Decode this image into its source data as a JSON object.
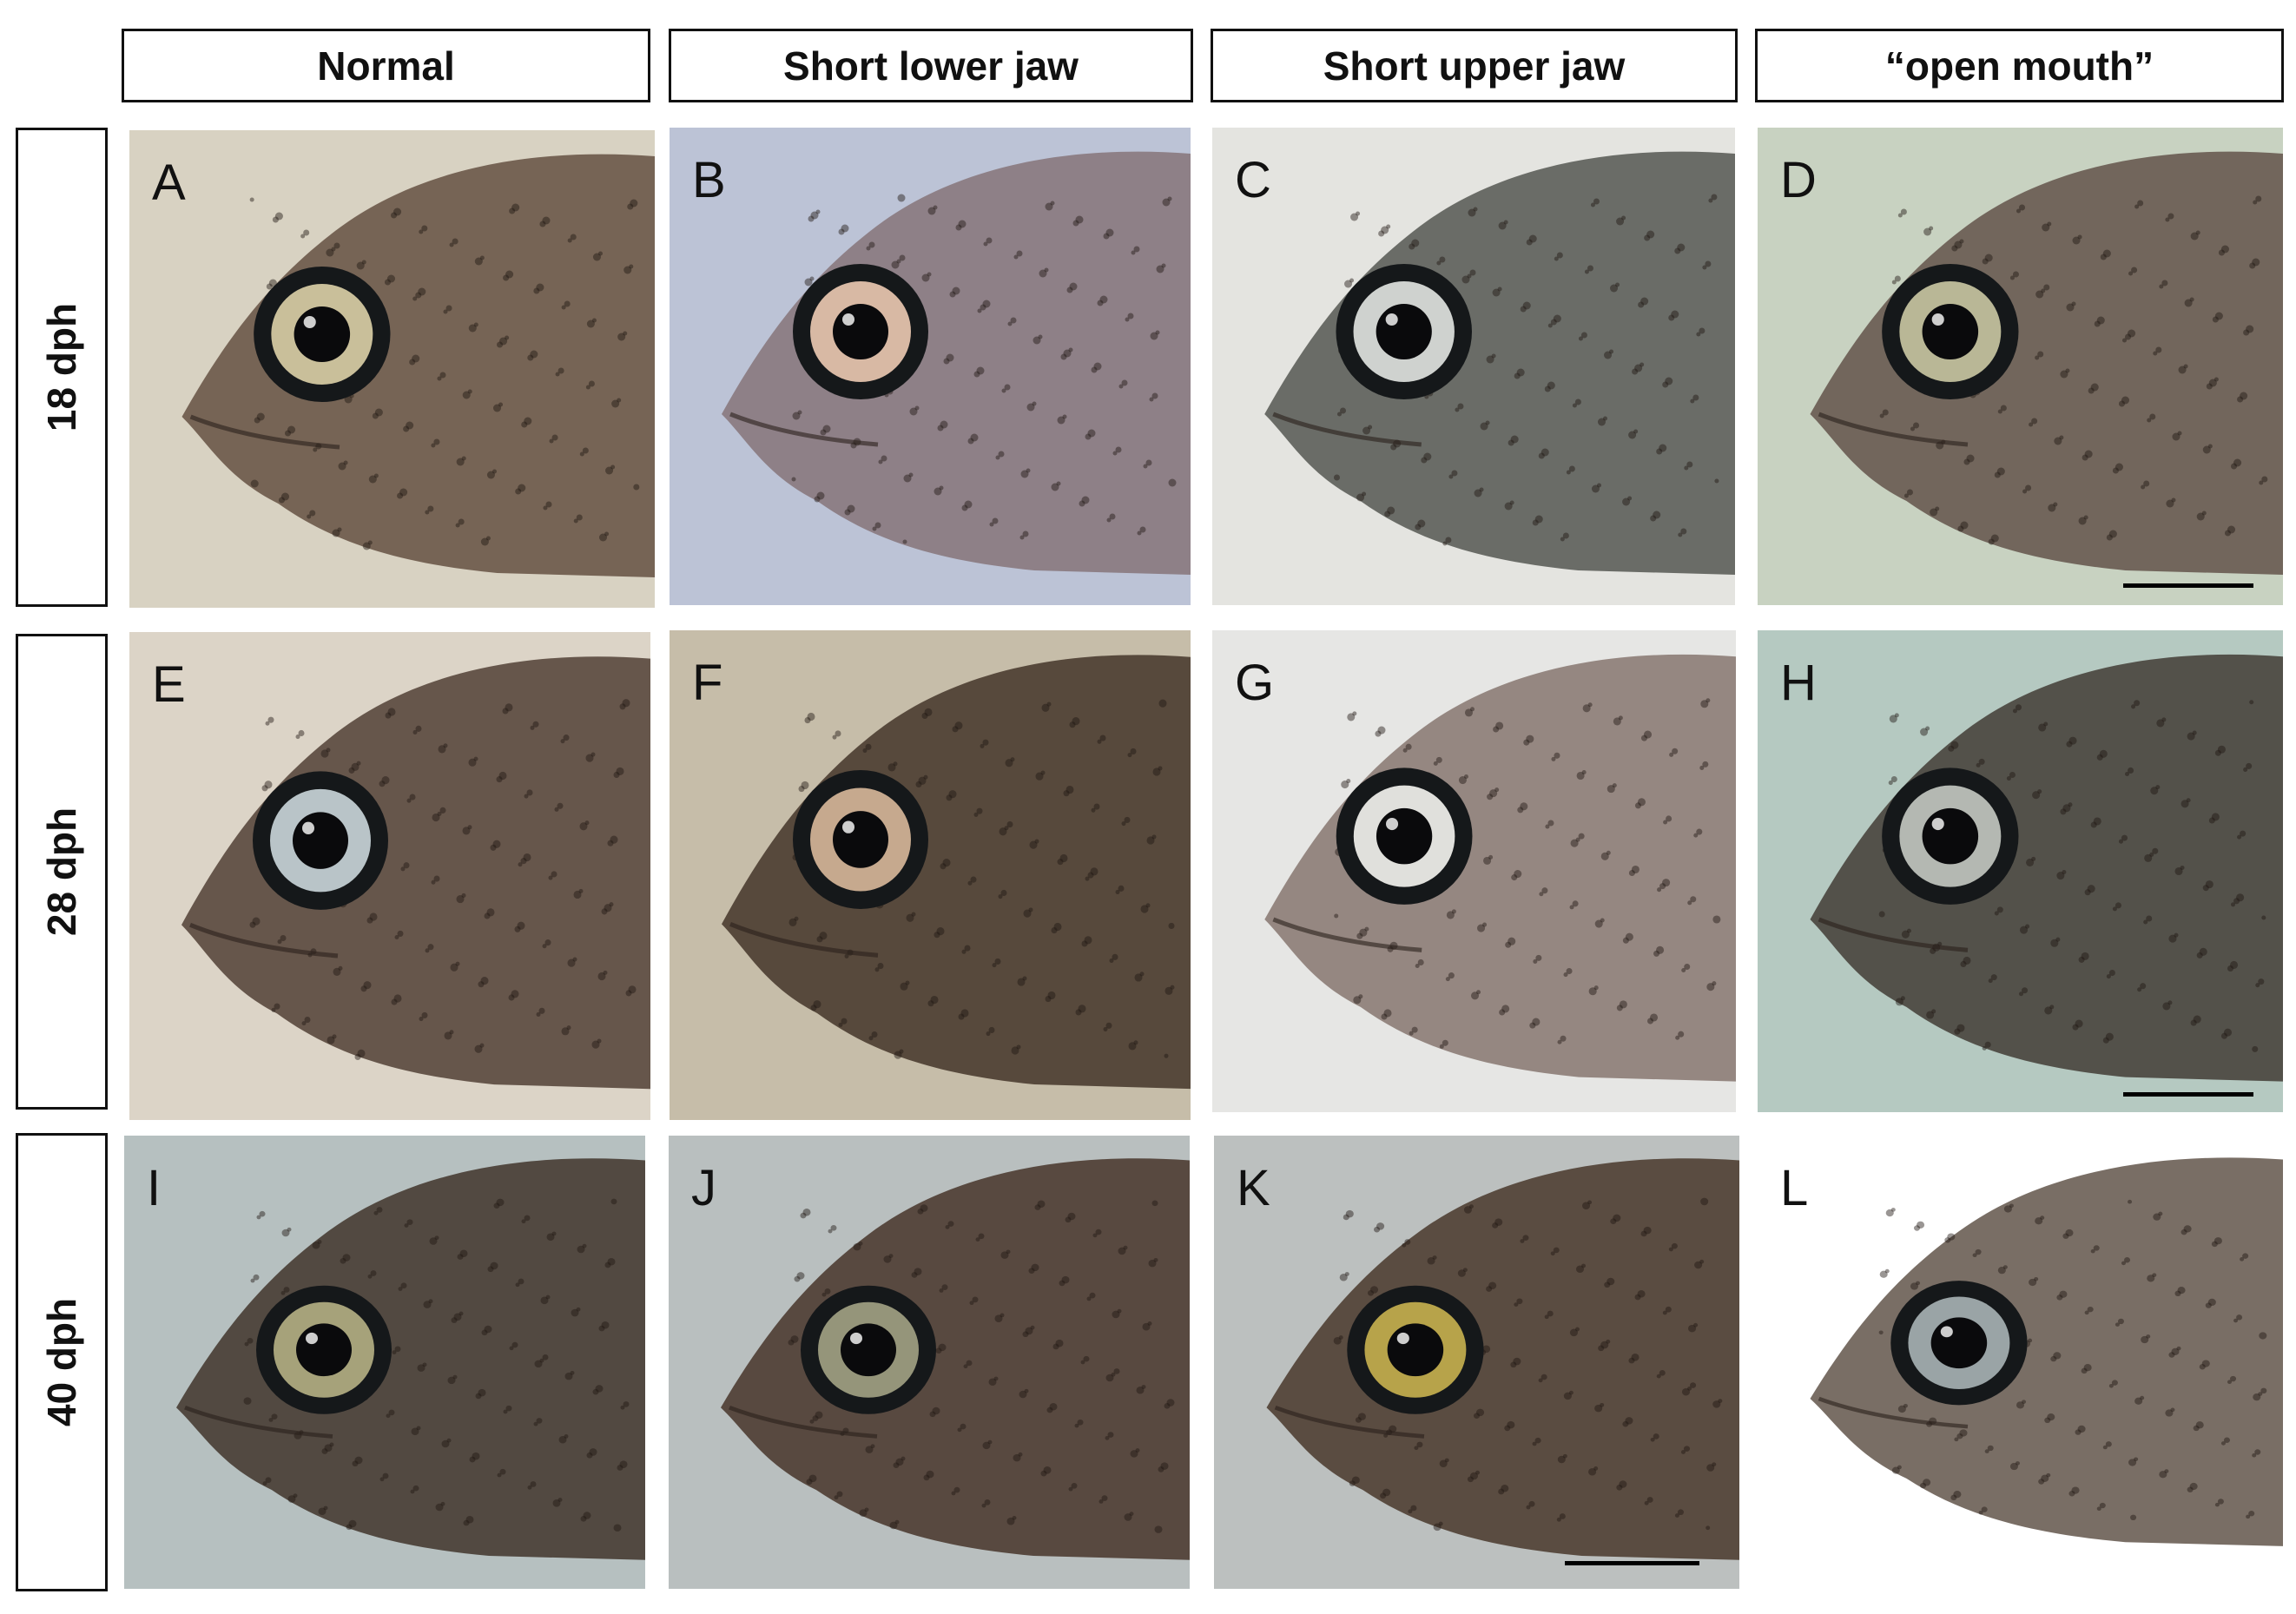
{
  "columns": [
    {
      "label": "Normal"
    },
    {
      "label": "Short lower jaw"
    },
    {
      "label": "Short upper jaw"
    },
    {
      "label": "“open mouth”"
    }
  ],
  "rows": [
    {
      "label": "18 dph"
    },
    {
      "label": "28 dph"
    },
    {
      "label": "40 dph"
    }
  ],
  "panels": [
    {
      "letter": "A",
      "bg": "#d8d2c2",
      "body": "#6e5a4c",
      "eye_ring": "#c9bf9a"
    },
    {
      "letter": "B",
      "bg": "#bcc3d6",
      "body": "#8a7b80",
      "eye_ring": "#d8b9a4"
    },
    {
      "letter": "C",
      "bg": "#e4e4e0",
      "body": "#5f625c",
      "eye_ring": "#cfd2cf"
    },
    {
      "letter": "D",
      "bg": "#c8d2c1",
      "body": "#6a5c54",
      "eye_ring": "#b9b796"
    },
    {
      "letter": "E",
      "bg": "#dcd4c7",
      "body": "#5b4b40",
      "eye_ring": "#b9c4c8"
    },
    {
      "letter": "F",
      "bg": "#c6bda9",
      "body": "#4d3f33",
      "eye_ring": "#c6a98e"
    },
    {
      "letter": "G",
      "bg": "#e6e6e4",
      "body": "#8e7f78",
      "eye_ring": "#e0e0dc"
    },
    {
      "letter": "H",
      "bg": "#b5c9c1",
      "body": "#4b4740",
      "eye_ring": "#b4b8b2"
    },
    {
      "letter": "I",
      "bg": "#b6c0c0",
      "body": "#4a3f36",
      "eye_ring": "#a6a27a"
    },
    {
      "letter": "J",
      "bg": "#b9bfbf",
      "body": "#4f3f35",
      "eye_ring": "#95957a"
    },
    {
      "letter": "K",
      "bg": "#bcc0bf",
      "body": "#514236",
      "eye_ring": "#b7a34a"
    },
    {
      "letter": "L",
      "bg": "#ffffff",
      "body": "#6e6258",
      "eye_ring": "#9aa4a6"
    }
  ]
}
